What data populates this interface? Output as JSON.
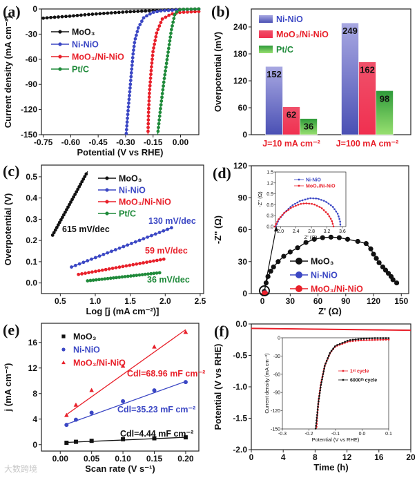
{
  "watermark": "大数跨境",
  "chart_data": [
    {
      "id": "a",
      "panel_label": "(a)",
      "type": "line",
      "xlabel": "Potential (V vs RHE)",
      "ylabel": "Current density (mA cm⁻²)",
      "xlim": [
        -0.76,
        0.1
      ],
      "ylim": [
        -150,
        0
      ],
      "xticks": [
        -0.75,
        -0.6,
        -0.45,
        -0.3,
        -0.15,
        0
      ],
      "xtick_labels": [
        "-0.75",
        "-0.60",
        "-0.45",
        "-0.30",
        "-0.15",
        "0.00"
      ],
      "yticks": [
        -150,
        -120,
        -90,
        -60,
        -30,
        0
      ],
      "ytick_labels": [
        "-150",
        "-120",
        "-90",
        "-60",
        "-30",
        "0"
      ],
      "series": [
        {
          "name": "MoO₃",
          "color": "#111111",
          "marker": "circle",
          "points": [
            [
              -0.75,
              -11
            ],
            [
              -0.7,
              -10
            ],
            [
              -0.6,
              -8.5
            ],
            [
              -0.5,
              -6.5
            ],
            [
              -0.4,
              -5
            ],
            [
              -0.3,
              -3.5
            ],
            [
              -0.2,
              -2.5
            ],
            [
              -0.1,
              -1.5
            ],
            [
              0,
              -0.5
            ],
            [
              0.1,
              0
            ]
          ]
        },
        {
          "name": "Ni-NiO",
          "color": "#3b47c4",
          "marker": "circle",
          "points": [
            [
              0.1,
              -0.2
            ],
            [
              0,
              -1
            ],
            [
              -0.1,
              -2
            ],
            [
              -0.15,
              -4
            ],
            [
              -0.2,
              -10
            ],
            [
              -0.23,
              -22
            ],
            [
              -0.25,
              -38
            ],
            [
              -0.26,
              -55
            ],
            [
              -0.27,
              -80
            ],
            [
              -0.28,
              -105
            ],
            [
              -0.29,
              -130
            ],
            [
              -0.297,
              -150
            ]
          ]
        },
        {
          "name": "MoO₃/Ni-NiO",
          "color": "#e8202a",
          "marker": "circle",
          "points": [
            [
              0.1,
              -3
            ],
            [
              0,
              -4
            ],
            [
              -0.05,
              -6
            ],
            [
              -0.1,
              -12
            ],
            [
              -0.13,
              -28
            ],
            [
              -0.15,
              -50
            ],
            [
              -0.16,
              -72
            ],
            [
              -0.17,
              -100
            ],
            [
              -0.175,
              -125
            ],
            [
              -0.178,
              -150
            ]
          ]
        },
        {
          "name": "Pt/C",
          "color": "#1f8a3a",
          "marker": "circle",
          "points": [
            [
              0.1,
              0
            ],
            [
              0,
              -0.5
            ],
            [
              -0.03,
              -5
            ],
            [
              -0.05,
              -25
            ],
            [
              -0.07,
              -55
            ],
            [
              -0.09,
              -85
            ],
            [
              -0.11,
              -120
            ],
            [
              -0.125,
              -150
            ]
          ]
        }
      ]
    },
    {
      "id": "b",
      "panel_label": "(b)",
      "type": "bar",
      "xlabel": "",
      "ylabel": "Overpotential (mV)",
      "ylim": [
        0,
        280
      ],
      "yticks": [
        0,
        60,
        120,
        180,
        240
      ],
      "ytick_labels": [
        "0",
        "60",
        "120",
        "180",
        "240"
      ],
      "categories": [
        "J=10 mA cm⁻²",
        "J=100 mA cm⁻²"
      ],
      "category_color": "#e8202a",
      "series": [
        {
          "name": "Ni-NiO",
          "color": "#3b47c4",
          "color_light": "#a8a8e2",
          "color_dark": "#4a50b4",
          "values": [
            152,
            249
          ]
        },
        {
          "name": "MoO₃/Ni-NiO",
          "color": "#e8202a",
          "color_light": "#f0506a",
          "color_dark": "#f03050",
          "values": [
            62,
            162
          ]
        },
        {
          "name": "Pt/C",
          "color": "#1f8a3a",
          "color_light": "#2e9a3a",
          "color_dark": "#98e070",
          "values": [
            36,
            98
          ]
        }
      ]
    },
    {
      "id": "c",
      "panel_label": "(c)",
      "type": "line",
      "xlabel": "Log [j (mA cm⁻²)]",
      "ylabel": "Overpotential (V)",
      "xlim": [
        0.23,
        2.55
      ],
      "ylim": [
        -0.05,
        0.555
      ],
      "xticks": [
        0.5,
        1.0,
        1.5,
        2.0,
        2.5
      ],
      "xtick_labels": [
        "0.5",
        "1.0",
        "1.5",
        "2.0",
        "2.5"
      ],
      "yticks": [
        0,
        0.1,
        0.2,
        0.3,
        0.4,
        0.5
      ],
      "ytick_labels": [
        "0.0",
        "0.1",
        "0.2",
        "0.3",
        "0.4",
        "0.5"
      ],
      "series": [
        {
          "name": "MoO₃",
          "color": "#111111",
          "marker": "circle",
          "markers": 26,
          "points": [
            [
              0.39,
              0.225
            ],
            [
              0.89,
              0.525
            ]
          ]
        },
        {
          "name": "Ni-NiO",
          "color": "#3b47c4",
          "marker": "circle",
          "markers": 26,
          "points": [
            [
              0.66,
              0.075
            ],
            [
              2.09,
              0.26
            ]
          ]
        },
        {
          "name": "MoO₃/Ni-NiO",
          "color": "#e8202a",
          "marker": "circle",
          "markers": 26,
          "points": [
            [
              0.76,
              0.04
            ],
            [
              1.98,
              0.112
            ]
          ]
        },
        {
          "name": "Pt/C",
          "color": "#1f8a3a",
          "marker": "circle",
          "markers": 26,
          "points": [
            [
              0.89,
              0.01
            ],
            [
              1.92,
              0.048
            ]
          ]
        }
      ],
      "annotations": [
        {
          "text": "615 mV/dec",
          "color": "#111111"
        },
        {
          "text": "130 mV/dec",
          "color": "#3b47c4"
        },
        {
          "text": "59 mV/dec",
          "color": "#e8202a"
        },
        {
          "text": "36 mV/dec",
          "color": "#1f8a3a"
        }
      ]
    },
    {
      "id": "d",
      "panel_label": "(d)",
      "type": "scatter",
      "xlabel": "Z' (Ω)",
      "ylabel": "-Z'' (Ω)",
      "xlim": [
        -12,
        158
      ],
      "ylim": [
        0,
        120
      ],
      "xticks": [
        0,
        30,
        60,
        90,
        120,
        150
      ],
      "xtick_labels": [
        "0",
        "30",
        "60",
        "90",
        "120",
        "150"
      ],
      "yticks": [
        0,
        30,
        60,
        90,
        120
      ],
      "ytick_labels": [
        "0",
        "30",
        "60",
        "90",
        "120"
      ],
      "series": [
        {
          "name": "MoO₃",
          "color": "#111111",
          "marker": "circle",
          "points": [
            [
              2,
              2
            ],
            [
              4,
              10
            ],
            [
              6,
              16
            ],
            [
              9,
              21
            ],
            [
              12,
              25
            ],
            [
              17,
              30
            ],
            [
              23,
              35
            ],
            [
              30,
              39
            ],
            [
              38,
              43
            ],
            [
              47,
              48
            ],
            [
              56,
              51
            ],
            [
              65,
              52.5
            ],
            [
              74,
              53
            ],
            [
              83,
              52.5
            ],
            [
              92,
              51
            ],
            [
              103,
              49
            ],
            [
              112,
              47
            ],
            [
              117,
              42
            ],
            [
              120,
              37
            ],
            [
              123,
              33
            ],
            [
              126,
              29
            ],
            [
              130,
              25
            ],
            [
              133,
              22
            ],
            [
              136,
              19
            ],
            [
              139,
              16
            ],
            [
              141,
              13
            ],
            [
              145,
              10
            ]
          ]
        },
        {
          "name": "Ni-NiO",
          "color": "#3b47c4",
          "marker": "circle",
          "points": [
            [
              1.9,
              0.1
            ],
            [
              2.4,
              0.7
            ],
            [
              3.0,
              0.75
            ],
            [
              3.5,
              0.2
            ]
          ]
        },
        {
          "name": "MoO₃/Ni-NiO",
          "color": "#e8202a",
          "marker": "circle",
          "points": [
            [
              1.9,
              0.1
            ],
            [
              2.3,
              0.6
            ],
            [
              2.9,
              0.6
            ],
            [
              3.35,
              0.1
            ]
          ]
        }
      ]
    },
    {
      "id": "d_inset",
      "type": "line",
      "xlabel": "Z' (Ω)",
      "ylabel": "-Z'' (Ω)",
      "xlim": [
        1.87,
        3.69
      ],
      "ylim": [
        0,
        1.5
      ],
      "xticks": [
        2.0,
        2.4,
        2.8,
        3.2,
        3.6
      ],
      "xtick_labels": [
        "2.0",
        "2.4",
        "2.8",
        "3.2",
        "3.6"
      ],
      "yticks": [
        0,
        0.3,
        0.6,
        0.9,
        1.2,
        1.5
      ],
      "ytick_labels": [
        "0.0",
        "0.3",
        "0.6",
        "0.9",
        "1.2",
        "1.5"
      ],
      "series": [
        {
          "name": "Ni-NiO",
          "color": "#3b47c4",
          "marker": "circle",
          "points": [
            [
              1.88,
              0
            ],
            [
              1.95,
              0.18
            ],
            [
              2.1,
              0.38
            ],
            [
              2.3,
              0.58
            ],
            [
              2.5,
              0.7
            ],
            [
              2.75,
              0.78
            ],
            [
              2.95,
              0.77
            ],
            [
              3.15,
              0.7
            ],
            [
              3.35,
              0.55
            ],
            [
              3.48,
              0.35
            ],
            [
              3.54,
              0.15
            ],
            [
              3.55,
              0
            ]
          ]
        },
        {
          "name": "MoO₃/Ni-NiO",
          "color": "#e8202a",
          "marker": "circle",
          "points": [
            [
              1.85,
              0
            ],
            [
              1.95,
              0.2
            ],
            [
              2.1,
              0.38
            ],
            [
              2.3,
              0.53
            ],
            [
              2.5,
              0.62
            ],
            [
              2.65,
              0.64
            ],
            [
              2.85,
              0.62
            ],
            [
              3.05,
              0.52
            ],
            [
              3.22,
              0.35
            ],
            [
              3.32,
              0.18
            ],
            [
              3.37,
              0
            ]
          ]
        }
      ]
    },
    {
      "id": "e",
      "panel_label": "(e)",
      "type": "scatter",
      "xlabel": "Scan rate (V s⁻¹)",
      "ylabel": "j (mA cm⁻²)",
      "xlim": [
        -0.03,
        0.221
      ],
      "ylim": [
        -1,
        19
      ],
      "xticks": [
        0,
        0.05,
        0.1,
        0.15,
        0.2
      ],
      "xtick_labels": [
        "0.00",
        "0.05",
        "0.10",
        "0.15",
        "0.20"
      ],
      "yticks": [
        0,
        4,
        8,
        12,
        16
      ],
      "ytick_labels": [
        "0",
        "4",
        "8",
        "12",
        "16"
      ],
      "series": [
        {
          "name": "MoO₃",
          "color": "#111111",
          "marker": "square",
          "points": [
            [
              0.01,
              0.3
            ],
            [
              0.025,
              0.45
            ],
            [
              0.05,
              0.6
            ],
            [
              0.1,
              0.85
            ],
            [
              0.15,
              1.0
            ],
            [
              0.2,
              1.15
            ]
          ],
          "fit": [
            [
              0.01,
              0.35
            ],
            [
              0.2,
              1.15
            ]
          ]
        },
        {
          "name": "Ni-NiO",
          "color": "#3b47c4",
          "marker": "circle",
          "points": [
            [
              0.01,
              3.1
            ],
            [
              0.025,
              3.9
            ],
            [
              0.05,
              5.0
            ],
            [
              0.1,
              6.8
            ],
            [
              0.15,
              8.5
            ],
            [
              0.2,
              9.8
            ]
          ],
          "fit": [
            [
              0.01,
              3.2
            ],
            [
              0.2,
              9.9
            ]
          ]
        },
        {
          "name": "MoO₃/Ni-NiO",
          "color": "#e8202a",
          "marker": "triangle",
          "points": [
            [
              0.01,
              4.6
            ],
            [
              0.025,
              6.2
            ],
            [
              0.05,
              8.5
            ],
            [
              0.1,
              12.3
            ],
            [
              0.15,
              15.3
            ],
            [
              0.2,
              17.6
            ]
          ],
          "fit": [
            [
              0.01,
              4.7
            ],
            [
              0.2,
              18.0
            ]
          ]
        }
      ],
      "annotations": [
        {
          "text": "Cdl=68.96 mF cm⁻²",
          "color": "#e8202a"
        },
        {
          "text": "Cdl=35.23 mF cm⁻²",
          "color": "#3b47c4"
        },
        {
          "text": "Cdl=4.44 mF cm⁻²",
          "color": "#111111"
        }
      ]
    },
    {
      "id": "f",
      "panel_label": "(f)",
      "type": "line",
      "xlabel": "Time (h)",
      "ylabel": "Potential (V vs RHE)",
      "xlim": [
        0,
        20
      ],
      "ylim": [
        -2,
        0
      ],
      "xticks": [
        0,
        4,
        8,
        12,
        16,
        20
      ],
      "xtick_labels": [
        "0",
        "4",
        "8",
        "12",
        "16",
        "20"
      ],
      "yticks": [
        -2,
        -1.5,
        -1,
        -0.5,
        0
      ],
      "ytick_labels": [
        "-2.0",
        "-1.5",
        "-1.0",
        "-0.5",
        "0.0"
      ],
      "series": [
        {
          "name": "",
          "color": "#e8202a",
          "marker": "none",
          "points": [
            [
              0,
              -0.07
            ],
            [
              20,
              -0.1
            ]
          ]
        }
      ]
    },
    {
      "id": "f_inset",
      "type": "line",
      "xlabel": "Potential (V vs RHE)",
      "ylabel": "Current density (mA cm⁻²)",
      "xlim": [
        -0.3,
        0.1
      ],
      "ylim": [
        -150,
        0
      ],
      "xticks": [
        -0.3,
        -0.2,
        -0.1,
        0,
        0.1
      ],
      "xtick_labels": [
        "-0.3",
        "-0.2",
        "-0.1",
        "0.0",
        "0.1"
      ],
      "yticks": [
        -150,
        -120,
        -90,
        -60,
        -30,
        0
      ],
      "ytick_labels": [
        "-150",
        "-120",
        "-90",
        "-60",
        "-30",
        "0"
      ],
      "series": [
        {
          "name": "1ˢᵗ cycle",
          "color": "#e8202a",
          "marker": "circle",
          "points": [
            [
              0.1,
              -3
            ],
            [
              0.05,
              -3.5
            ],
            [
              0,
              -4
            ],
            [
              -0.05,
              -6
            ],
            [
              -0.1,
              -14
            ],
            [
              -0.12,
              -25
            ],
            [
              -0.14,
              -45
            ],
            [
              -0.155,
              -75
            ],
            [
              -0.163,
              -100
            ],
            [
              -0.168,
              -125
            ],
            [
              -0.172,
              -150
            ]
          ]
        },
        {
          "name": "6000ᵗʰ cycle",
          "color": "#111111",
          "marker": "circle",
          "points": [
            [
              0.1,
              -0.5
            ],
            [
              0.05,
              -0.5
            ],
            [
              0,
              -1.5
            ],
            [
              -0.05,
              -4
            ],
            [
              -0.1,
              -13
            ],
            [
              -0.12,
              -24
            ],
            [
              -0.14,
              -45
            ],
            [
              -0.155,
              -78
            ],
            [
              -0.165,
              -108
            ],
            [
              -0.17,
              -130
            ],
            [
              -0.175,
              -150
            ]
          ]
        }
      ]
    }
  ]
}
